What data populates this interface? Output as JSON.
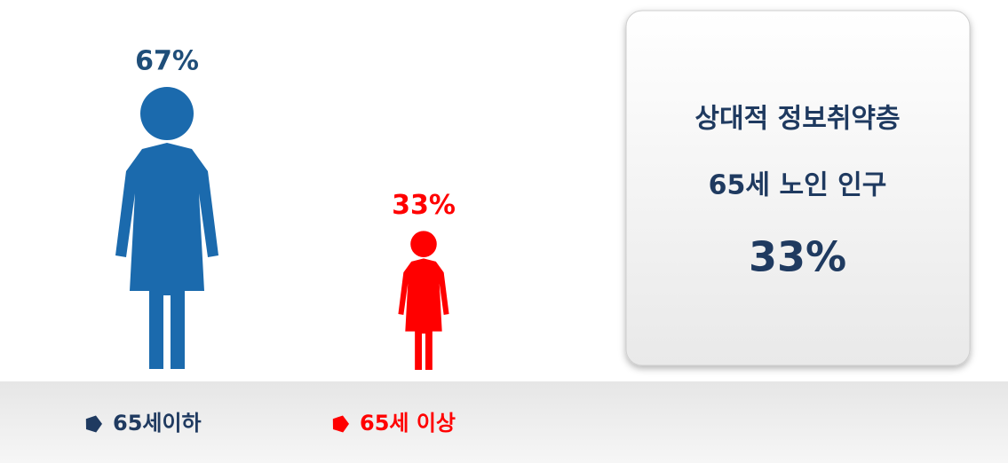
{
  "chart_data": {
    "type": "pictogram",
    "categories": [
      "65세이하",
      "65세 이상"
    ],
    "series": [
      {
        "name": "share",
        "values": [
          67,
          33
        ],
        "value_labels": [
          "67%",
          "33%"
        ]
      }
    ],
    "colors": [
      "#1b6aad",
      "#ff0000"
    ],
    "legend_colors": [
      "#1f3a60",
      "#ff0000"
    ],
    "label_colors": [
      "#1f4e79",
      "#ff0000"
    ],
    "callout": {
      "lines": [
        "상대적 정보취약층",
        "65세 노인 인구"
      ],
      "value_label": "33%"
    }
  }
}
